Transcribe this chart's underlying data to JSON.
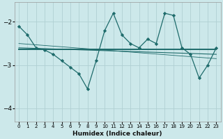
{
  "xlabel": "Humidex (Indice chaleur)",
  "bg_color": "#cce8ea",
  "grid_color": "#b0d0d3",
  "line_color": "#1e6b6b",
  "xlim": [
    -0.5,
    23.5
  ],
  "ylim": [
    -4.3,
    -1.55
  ],
  "yticks": [
    -4,
    -3,
    -2
  ],
  "xticks": [
    0,
    1,
    2,
    3,
    4,
    5,
    6,
    7,
    8,
    9,
    10,
    11,
    12,
    13,
    14,
    15,
    16,
    17,
    18,
    19,
    20,
    21,
    22,
    23
  ],
  "main_line_x": [
    0,
    1,
    2,
    3,
    4,
    5,
    6,
    7,
    8,
    9,
    10,
    11,
    12,
    13,
    14,
    15,
    16,
    17,
    18,
    19,
    20,
    21,
    22,
    23
  ],
  "main_line_y": [
    -2.1,
    -2.3,
    -2.6,
    -2.65,
    -2.75,
    -2.9,
    -3.05,
    -3.2,
    -3.55,
    -2.9,
    -2.2,
    -1.8,
    -2.3,
    -2.5,
    -2.6,
    -2.4,
    -2.5,
    -1.8,
    -1.85,
    -2.6,
    -2.75,
    -3.3,
    -3.0,
    -2.6
  ],
  "trend_line1_x": [
    0,
    23
  ],
  "trend_line1_y": [
    -2.63,
    -2.63
  ],
  "trend_line2_x": [
    0,
    23
  ],
  "trend_line2_y": [
    -2.6,
    -2.75
  ],
  "trend_line3_x": [
    0,
    23
  ],
  "trend_line3_y": [
    -2.5,
    -2.85
  ],
  "trend_line1_lw": 1.4,
  "trend_line2_lw": 0.8,
  "trend_line3_lw": 0.6
}
